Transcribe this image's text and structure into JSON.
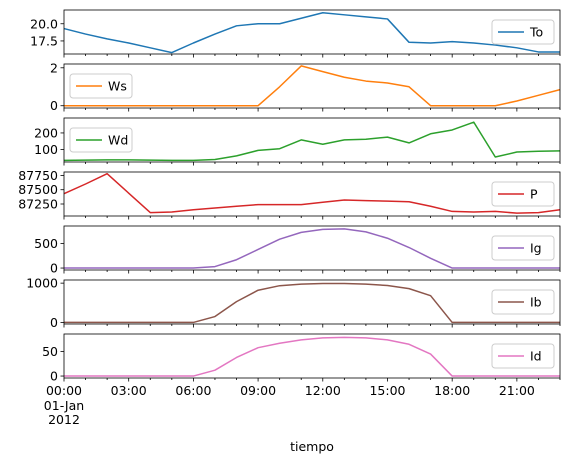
{
  "chart_data": {
    "type": "line",
    "xlabel": "tiempo",
    "x_tick_labels": [
      "00:00",
      "03:00",
      "06:00",
      "09:00",
      "12:00",
      "15:00",
      "18:00",
      "21:00"
    ],
    "x_date_label": [
      "01-Jan",
      "2012"
    ],
    "x": [
      "00:00",
      "01:00",
      "02:00",
      "03:00",
      "04:00",
      "05:00",
      "06:00",
      "07:00",
      "08:00",
      "09:00",
      "10:00",
      "11:00",
      "12:00",
      "13:00",
      "14:00",
      "15:00",
      "16:00",
      "17:00",
      "18:00",
      "19:00",
      "20:00",
      "21:00",
      "22:00",
      "23:00"
    ],
    "panels": [
      {
        "name": "To",
        "color": "#1f77b4",
        "ylim": [
          15.6,
          22.0
        ],
        "yticks": [
          17.5,
          20.0
        ],
        "ytick_labels": [
          "17.5",
          "20.0"
        ],
        "values": [
          19.3,
          18.5,
          17.8,
          17.2,
          16.5,
          15.8,
          17.2,
          18.5,
          19.7,
          20.0,
          20.0,
          20.8,
          21.6,
          21.3,
          21.0,
          20.7,
          17.3,
          17.2,
          17.4,
          17.2,
          16.9,
          16.5,
          15.9,
          15.9
        ]
      },
      {
        "name": "Ws",
        "color": "#ff7f0e",
        "ylim": [
          -0.12,
          2.2
        ],
        "yticks": [
          0,
          2
        ],
        "ytick_labels": [
          "0",
          "2"
        ],
        "values": [
          0,
          0,
          0,
          0,
          0,
          0,
          0,
          0,
          0,
          0,
          1.0,
          2.1,
          1.8,
          1.5,
          1.3,
          1.2,
          1.0,
          0,
          0,
          0,
          0,
          0.25,
          0.55,
          0.85
        ]
      },
      {
        "name": "Wd",
        "color": "#2ca02c",
        "ylim": [
          25,
          290
        ],
        "yticks": [
          100,
          200
        ],
        "ytick_labels": [
          "100",
          "200"
        ],
        "values": [
          35,
          36,
          38,
          38,
          36,
          35,
          35,
          40,
          62,
          95,
          105,
          158,
          132,
          158,
          162,
          175,
          140,
          195,
          218,
          265,
          55,
          85,
          90,
          92
        ]
      },
      {
        "name": "P",
        "color": "#d62728",
        "ylim": [
          87040,
          87810
        ],
        "yticks": [
          87250,
          87500,
          87750
        ],
        "ytick_labels": [
          "87250",
          "87500",
          "87750"
        ],
        "values": [
          87430,
          87600,
          87780,
          87440,
          87100,
          87110,
          87150,
          87180,
          87210,
          87240,
          87240,
          87240,
          87280,
          87320,
          87310,
          87300,
          87290,
          87210,
          87120,
          87110,
          87120,
          87090,
          87100,
          87150
        ]
      },
      {
        "name": "Ig",
        "color": "#9467bd",
        "ylim": [
          -40,
          860
        ],
        "yticks": [
          0,
          500
        ],
        "ytick_labels": [
          "0",
          "500"
        ],
        "values": [
          0,
          0,
          0,
          0,
          0,
          0,
          0,
          30,
          170,
          380,
          590,
          730,
          790,
          800,
          740,
          610,
          420,
          200,
          0,
          0,
          0,
          0,
          0,
          0
        ]
      },
      {
        "name": "Ib",
        "color": "#8c564b",
        "ylim": [
          -40,
          1080
        ],
        "yticks": [
          0,
          1000
        ],
        "ytick_labels": [
          "0",
          "1000"
        ],
        "values": [
          0,
          0,
          0,
          0,
          0,
          0,
          0,
          150,
          530,
          820,
          935,
          975,
          990,
          990,
          975,
          940,
          860,
          680,
          0,
          0,
          0,
          0,
          0,
          0
        ]
      },
      {
        "name": "Id",
        "color": "#e377c2",
        "ylim": [
          -4,
          86
        ],
        "yticks": [
          0,
          50
        ],
        "ytick_labels": [
          "0",
          "50"
        ],
        "values": [
          0,
          0,
          0,
          0,
          0,
          0,
          0,
          12,
          38,
          58,
          67,
          74,
          78,
          79,
          78,
          74,
          65,
          45,
          0,
          0,
          0,
          0,
          0,
          0
        ]
      }
    ]
  }
}
